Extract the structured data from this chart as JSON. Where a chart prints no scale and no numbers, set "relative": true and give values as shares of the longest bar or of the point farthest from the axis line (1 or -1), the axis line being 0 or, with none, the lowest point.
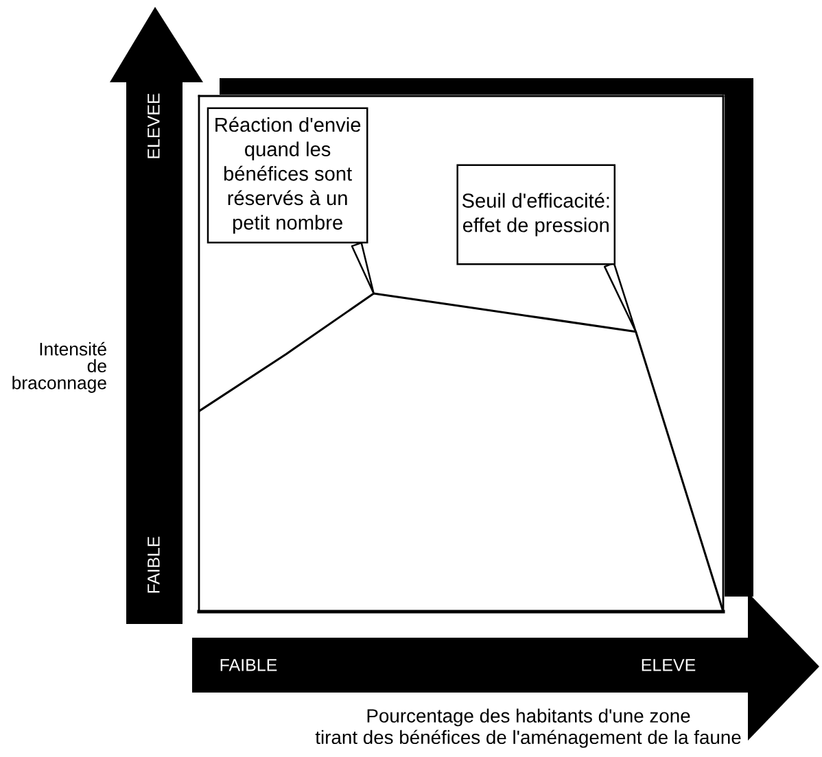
{
  "chart_data": {
    "type": "line",
    "relative": true,
    "categories": [
      null,
      null,
      null,
      null,
      null,
      null,
      null
    ],
    "values": [
      0.63,
      0.81,
      1,
      0.96,
      0.92,
      0.88,
      0
    ],
    "color": "#000000",
    "line_style": "solid",
    "annotations": [
      "ELEVEE",
      "Réaction d'envie\nquand les\nbénéfices sont\nréservés à un\npetit nombre",
      "Seuil d'efficacité:\neffet de pression",
      "Intensité\nde\nbraconnage",
      "FAIBLE",
      "FAIBLE",
      "ELEVE",
      "Pourcentage des habitants d'une zone\ntirant des bénéfices de l'aménagement de la faune"
    ]
  }
}
